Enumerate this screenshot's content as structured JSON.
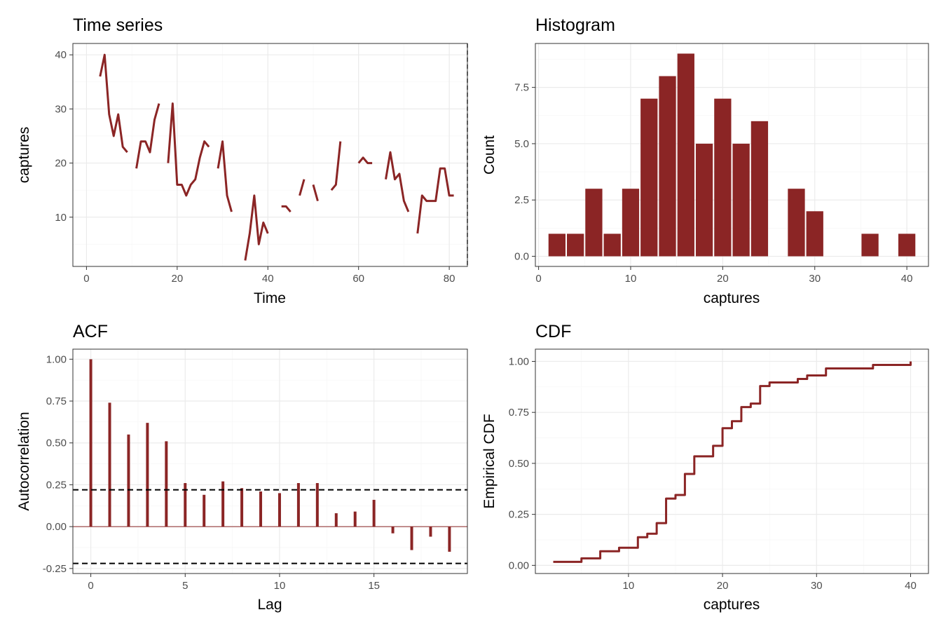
{
  "colors": {
    "accent": "#8b2525",
    "grid_major": "#ebebeb",
    "grid_minor": "#f5f5f5",
    "panel_border": "#333333",
    "ref_line": "#000000"
  },
  "chart_data": [
    {
      "id": "ts",
      "type": "line",
      "title": "Time series",
      "xlabel": "Time",
      "ylabel": "captures",
      "xlim": [
        -3,
        84
      ],
      "ylim": [
        0.9,
        42.1
      ],
      "xticks": [
        0,
        20,
        40,
        60,
        80
      ],
      "xtick_labels": [
        "0",
        "20",
        "40",
        "60",
        "80"
      ],
      "yticks": [
        10,
        20,
        30,
        40
      ],
      "ytick_labels": [
        "10",
        "20",
        "30",
        "40"
      ],
      "x": [
        1,
        2,
        3,
        4,
        5,
        6,
        7,
        8,
        9,
        10,
        11,
        12,
        13,
        14,
        15,
        16,
        17,
        18,
        19,
        20,
        21,
        22,
        23,
        24,
        25,
        26,
        27,
        28,
        29,
        30,
        31,
        32,
        33,
        34,
        35,
        36,
        37,
        38,
        39,
        40,
        41,
        42,
        43,
        44,
        45,
        46,
        47,
        48,
        49,
        50,
        51,
        52,
        53,
        54,
        55,
        56,
        57,
        58,
        59,
        60,
        61,
        62,
        63,
        64,
        65,
        66,
        67,
        68,
        69,
        70,
        71,
        72,
        73,
        74,
        75,
        76,
        77,
        78,
        79,
        80,
        81,
        82,
        83
      ],
      "values": [
        null,
        null,
        36,
        40,
        29,
        25,
        29,
        23,
        22,
        null,
        19,
        24,
        24,
        22,
        28,
        31,
        null,
        20,
        31,
        16,
        16,
        14,
        16,
        17,
        21,
        24,
        23,
        null,
        19,
        24,
        14,
        11,
        null,
        null,
        2,
        7,
        14,
        5,
        9,
        7,
        null,
        null,
        12,
        12,
        11,
        null,
        14,
        17,
        null,
        16,
        13,
        null,
        null,
        15,
        16,
        24,
        null,
        null,
        null,
        20,
        21,
        20,
        20,
        null,
        null,
        17,
        22,
        17,
        18,
        13,
        11,
        null,
        7,
        14,
        13,
        13,
        13,
        19,
        19,
        14,
        14,
        null,
        null
      ],
      "dashed_vline": 84
    },
    {
      "id": "hist",
      "type": "bar",
      "title": "Histogram",
      "xlabel": "captures",
      "ylabel": "Count",
      "xlim": [
        -0.35,
        42.35
      ],
      "ylim": [
        -0.45,
        9.45
      ],
      "xticks": [
        0,
        10,
        20,
        30,
        40
      ],
      "xtick_labels": [
        "0",
        "10",
        "20",
        "30",
        "40"
      ],
      "yticks": [
        0,
        2.5,
        5,
        7.5
      ],
      "ytick_labels": [
        "0.0",
        "2.5",
        "5.0",
        "7.5"
      ],
      "bin_width": 2,
      "bins": [
        2,
        4,
        6,
        8,
        10,
        12,
        14,
        16,
        18,
        20,
        22,
        24,
        26,
        28,
        30,
        32,
        34,
        36,
        38,
        40
      ],
      "values": [
        1,
        1,
        3,
        1,
        3,
        7,
        8,
        9,
        5,
        7,
        5,
        6,
        0,
        3,
        2,
        0,
        0,
        1,
        0,
        1
      ]
    },
    {
      "id": "acf",
      "type": "bar",
      "title": "ACF",
      "xlabel": "Lag",
      "ylabel": "Autocorrelation",
      "xlim": [
        -0.95,
        19.95
      ],
      "ylim": [
        -0.28,
        1.06
      ],
      "xticks": [
        0,
        5,
        10,
        15
      ],
      "xtick_labels": [
        "0",
        "5",
        "10",
        "15"
      ],
      "yticks": [
        -0.25,
        0,
        0.25,
        0.5,
        0.75,
        1
      ],
      "ytick_labels": [
        "-0.25",
        "0.00",
        "0.25",
        "0.50",
        "0.75",
        "1.00"
      ],
      "lags": [
        0,
        1,
        2,
        3,
        4,
        5,
        6,
        7,
        8,
        9,
        10,
        11,
        12,
        13,
        14,
        15,
        16,
        17,
        18,
        19
      ],
      "values": [
        1.0,
        0.74,
        0.55,
        0.62,
        0.51,
        0.26,
        0.19,
        0.27,
        0.23,
        0.21,
        0.2,
        0.26,
        0.26,
        0.08,
        0.09,
        0.16,
        -0.04,
        -0.14,
        -0.06,
        -0.15
      ],
      "conf_limits": [
        0.22,
        -0.22
      ]
    },
    {
      "id": "cdf",
      "type": "line",
      "title": "CDF",
      "xlabel": "captures",
      "ylabel": "Empirical CDF",
      "xlim": [
        0.1,
        41.9
      ],
      "ylim": [
        -0.04,
        1.06
      ],
      "xticks": [
        10,
        20,
        30,
        40
      ],
      "xtick_labels": [
        "10",
        "20",
        "30",
        "40"
      ],
      "yticks": [
        0,
        0.25,
        0.5,
        0.75,
        1
      ],
      "ytick_labels": [
        "0.00",
        "0.25",
        "0.50",
        "0.75",
        "1.00"
      ],
      "counts": {
        "2": 1,
        "5": 1,
        "7": 2,
        "9": 1,
        "11": 3,
        "12": 1,
        "13": 3,
        "14": 7,
        "15": 1,
        "16": 6,
        "17": 5,
        "19": 3,
        "20": 5,
        "21": 2,
        "22": 4,
        "23": 1,
        "24": 5,
        "25": 1,
        "28": 1,
        "29": 1,
        "31": 2,
        "36": 1,
        "40": 1
      }
    }
  ]
}
